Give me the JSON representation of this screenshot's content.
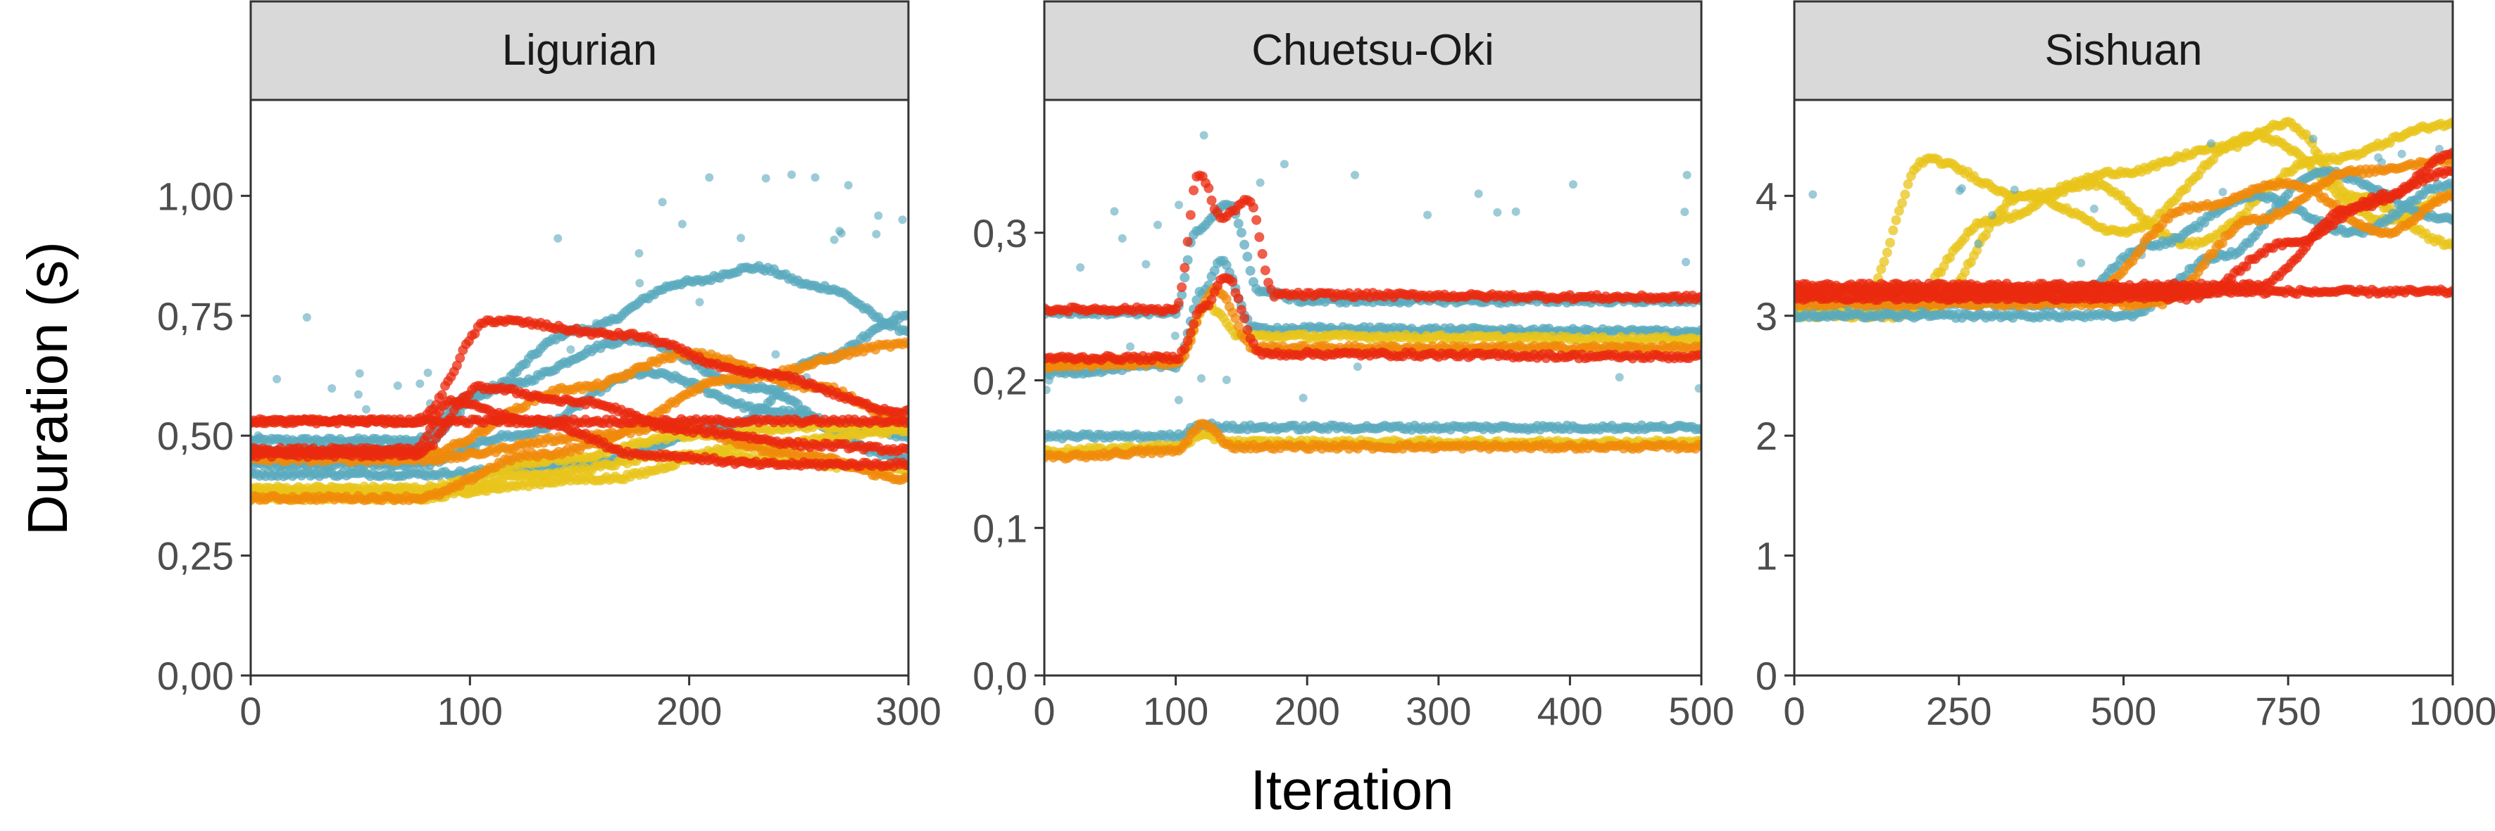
{
  "colors": {
    "blue": "#5aa9bd",
    "yellow": "#e8c419",
    "orange": "#f08a0a",
    "red": "#ea2a0f",
    "strip_background": "#d9d9d9",
    "panel_border": "#333333"
  },
  "chart_data": {
    "type": "scatter",
    "xlabel": "Iteration",
    "ylabel": "Duration (s)",
    "grid": false,
    "legend": "none",
    "panels": [
      {
        "title": "Ligurian",
        "xlim": [
          0,
          300
        ],
        "ylim": [
          0,
          1.2
        ],
        "xticks": [
          0,
          100,
          200,
          300
        ],
        "xtick_labels": [
          "0",
          "100",
          "200",
          "300"
        ],
        "yticks": [
          0,
          0.25,
          0.5,
          0.75,
          1.0
        ],
        "ytick_labels": [
          "0,00",
          "0,25",
          "0,50",
          "0,75",
          "1,00"
        ],
        "series": [
          {
            "color": "blue",
            "x": [
              0,
              75,
              100,
              150,
              200,
              230,
              260,
              300
            ],
            "y": [
              0.49,
              0.49,
              0.58,
              0.72,
              0.82,
              0.85,
              0.81,
              0.72
            ]
          },
          {
            "color": "blue",
            "x": [
              0,
              75,
              110,
              175,
              230,
              270,
              300
            ],
            "y": [
              0.47,
              0.47,
              0.6,
              0.7,
              0.6,
              0.52,
              0.5
            ]
          },
          {
            "color": "blue",
            "x": [
              0,
              75,
              120,
              180,
              240,
              300
            ],
            "y": [
              0.44,
              0.44,
              0.5,
              0.63,
              0.55,
              0.45
            ]
          },
          {
            "color": "blue",
            "x": [
              0,
              80,
              150,
              220,
              260,
              300
            ],
            "y": [
              0.42,
              0.42,
              0.44,
              0.52,
              0.66,
              0.75
            ]
          },
          {
            "color": "yellow",
            "x": [
              0,
              75,
              140,
              200,
              260,
              300
            ],
            "y": [
              0.39,
              0.39,
              0.45,
              0.5,
              0.52,
              0.52
            ]
          },
          {
            "color": "yellow",
            "x": [
              0,
              75,
              130,
              200,
              300
            ],
            "y": [
              0.37,
              0.37,
              0.42,
              0.46,
              0.43
            ]
          },
          {
            "color": "yellow",
            "x": [
              0,
              80,
              160,
              230,
              300
            ],
            "y": [
              0.38,
              0.38,
              0.41,
              0.48,
              0.51
            ]
          },
          {
            "color": "orange",
            "x": [
              0,
              75,
              130,
              190,
              250,
              300
            ],
            "y": [
              0.37,
              0.37,
              0.46,
              0.52,
              0.46,
              0.41
            ]
          },
          {
            "color": "orange",
            "x": [
              0,
              75,
              160,
              220,
              300
            ],
            "y": [
              0.45,
              0.45,
              0.5,
              0.62,
              0.69
            ]
          },
          {
            "color": "orange",
            "x": [
              0,
              75,
              150,
              200,
              260,
              300
            ],
            "y": [
              0.46,
              0.46,
              0.6,
              0.67,
              0.6,
              0.53
            ]
          },
          {
            "color": "red",
            "x": [
              0,
              75,
              110,
              170,
              230,
              300
            ],
            "y": [
              0.53,
              0.53,
              0.74,
              0.71,
              0.63,
              0.55
            ]
          },
          {
            "color": "red",
            "x": [
              0,
              75,
              105,
              150,
              200,
              260,
              300
            ],
            "y": [
              0.46,
              0.46,
              0.6,
              0.57,
              0.51,
              0.48,
              0.47
            ]
          },
          {
            "color": "red",
            "x": [
              0,
              75,
              90,
              130,
              180,
              240,
              300
            ],
            "y": [
              0.47,
              0.47,
              0.57,
              0.53,
              0.46,
              0.44,
              0.44
            ]
          },
          {
            "color": "red",
            "x": [
              0,
              300
            ],
            "y": [
              0.53,
              0.53
            ]
          }
        ]
      },
      {
        "title": "Chuetsu-Oki",
        "xlim": [
          0,
          500
        ],
        "ylim": [
          0,
          0.39
        ],
        "xticks": [
          0,
          100,
          200,
          300,
          400,
          500
        ],
        "xtick_labels": [
          "0",
          "100",
          "200",
          "300",
          "400",
          "500"
        ],
        "yticks": [
          0,
          0.1,
          0.2,
          0.3
        ],
        "ytick_labels": [
          "0,0",
          "0,1",
          "0,2",
          "0,3"
        ],
        "series": [
          {
            "color": "blue",
            "x": [
              0,
              100,
              115,
              140,
              165,
              200,
              500
            ],
            "y": [
              0.246,
              0.246,
              0.3,
              0.32,
              0.26,
              0.254,
              0.254
            ]
          },
          {
            "color": "blue",
            "x": [
              0,
              100,
              120,
              135,
              160,
              500
            ],
            "y": [
              0.205,
              0.21,
              0.26,
              0.28,
              0.235,
              0.233
            ]
          },
          {
            "color": "blue",
            "x": [
              0,
              100,
              120,
              140,
              500
            ],
            "y": [
              0.162,
              0.162,
              0.17,
              0.168,
              0.168
            ]
          },
          {
            "color": "yellow",
            "x": [
              0,
              100,
              125,
              150,
              500
            ],
            "y": [
              0.212,
              0.214,
              0.25,
              0.23,
              0.228
            ]
          },
          {
            "color": "yellow",
            "x": [
              0,
              100,
              120,
              150,
              500
            ],
            "y": [
              0.152,
              0.155,
              0.162,
              0.158,
              0.158
            ]
          },
          {
            "color": "orange",
            "x": [
              0,
              100,
              130,
              160,
              500
            ],
            "y": [
              0.21,
              0.212,
              0.262,
              0.222,
              0.222
            ]
          },
          {
            "color": "orange",
            "x": [
              0,
              100,
              120,
              145,
              500
            ],
            "y": [
              0.148,
              0.152,
              0.17,
              0.155,
              0.155
            ]
          },
          {
            "color": "red",
            "x": [
              0,
              100,
              118,
              135,
              155,
              175,
              500
            ],
            "y": [
              0.248,
              0.248,
              0.34,
              0.31,
              0.322,
              0.258,
              0.256
            ]
          },
          {
            "color": "red",
            "x": [
              0,
              100,
              122,
              138,
              165,
              500
            ],
            "y": [
              0.215,
              0.215,
              0.25,
              0.27,
              0.218,
              0.216
            ]
          }
        ]
      },
      {
        "title": "Sishuan",
        "xlim": [
          0,
          1000
        ],
        "ylim": [
          0,
          4.8
        ],
        "xticks": [
          0,
          250,
          500,
          750,
          1000
        ],
        "xtick_labels": [
          "0",
          "250",
          "500",
          "750",
          "1000"
        ],
        "yticks": [
          0,
          1,
          2,
          3,
          4
        ],
        "ytick_labels": [
          "0",
          "1",
          "2",
          "3",
          "4"
        ],
        "series": [
          {
            "color": "yellow",
            "x": [
              0,
              100,
              200,
              350,
              500,
              650,
              750,
              850,
              1000
            ],
            "y": [
              3.1,
              3.1,
              4.3,
              4.0,
              4.2,
              4.4,
              4.6,
              4.0,
              3.6
            ]
          },
          {
            "color": "yellow",
            "x": [
              0,
              150,
              300,
              450,
              600,
              800,
              1000
            ],
            "y": [
              3.0,
              3.0,
              3.8,
              4.1,
              3.6,
              4.3,
              4.6
            ]
          },
          {
            "color": "yellow",
            "x": [
              0,
              200,
              350,
              500,
              700,
              900,
              1000
            ],
            "y": [
              3.05,
              3.05,
              4.0,
              3.7,
              4.5,
              3.8,
              4.0
            ]
          },
          {
            "color": "blue",
            "x": [
              0,
              400,
              550,
              700,
              850,
              1000
            ],
            "y": [
              3.1,
              3.1,
              3.6,
              4.0,
              3.7,
              4.1
            ]
          },
          {
            "color": "blue",
            "x": [
              0,
              500,
              650,
              800,
              1000
            ],
            "y": [
              3.0,
              3.0,
              3.5,
              4.2,
              3.8
            ]
          },
          {
            "color": "orange",
            "x": [
              0,
              450,
              600,
              750,
              900,
              1000
            ],
            "y": [
              3.2,
              3.2,
              3.9,
              4.1,
              3.7,
              4.0
            ]
          },
          {
            "color": "orange",
            "x": [
              0,
              550,
              700,
              850,
              1000
            ],
            "y": [
              3.1,
              3.1,
              3.8,
              4.2,
              4.3
            ]
          },
          {
            "color": "red",
            "x": [
              0,
              600,
              750,
              900,
              1000
            ],
            "y": [
              3.15,
              3.15,
              3.6,
              4.0,
              4.35
            ]
          },
          {
            "color": "red",
            "x": [
              0,
              700,
              850,
              1000
            ],
            "y": [
              3.25,
              3.25,
              3.9,
              4.2
            ]
          },
          {
            "color": "red",
            "x": [
              0,
              1000
            ],
            "y": [
              3.2,
              3.2
            ]
          }
        ]
      }
    ]
  }
}
